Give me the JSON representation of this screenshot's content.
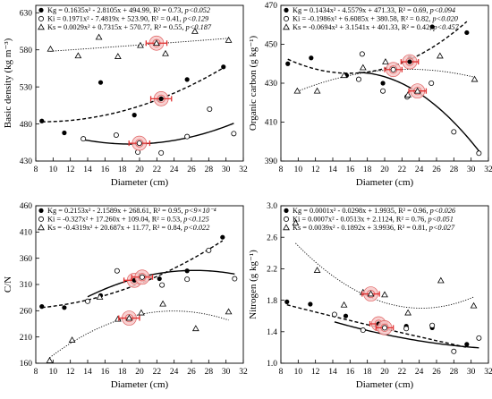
{
  "chart_data": [
    {
      "id": "bd",
      "type": "scatter",
      "ylabel": "Basic density (kg m⁻³)",
      "xlabel": "Diameter (cm)",
      "xlim": [
        8,
        32
      ],
      "ylim": [
        430,
        640
      ],
      "xticks": [
        8,
        10,
        12,
        14,
        16,
        18,
        20,
        22,
        24,
        26,
        28,
        30,
        32
      ],
      "yticks": [
        430,
        480,
        530,
        580,
        630
      ],
      "legend": [
        {
          "symbol": "filled-circle",
          "label": "Kg",
          "equation": " = 0.1635x² - 2.8105x + 494.99, R² = 0.73, ",
          "p": "p<0.052"
        },
        {
          "symbol": "open-circle",
          "label": "Ki",
          "equation": " = 0.1971x² - 7.4819x + 523.90, R² = 0.41, ",
          "p": "p<0.129"
        },
        {
          "symbol": "open-triangle",
          "label": "Ks",
          "equation": " = 0.0029x² + 0.7315x + 570.77, R² = 0.55, ",
          "p": "p<0.187"
        }
      ],
      "series": [
        {
          "name": "Kg",
          "marker": "filled-circle",
          "line": "dashed",
          "coef": [
            0.1635,
            -2.8105,
            494.99
          ],
          "points": [
            [
              8.7,
              484
            ],
            [
              11.3,
              468
            ],
            [
              15.5,
              536
            ],
            [
              19.4,
              492
            ],
            [
              22.3,
              512
            ],
            [
              25.5,
              540
            ],
            [
              29.7,
              557
            ]
          ],
          "opt": [
            22.5,
            514,
            1.2
          ]
        },
        {
          "name": "Ki",
          "marker": "open-circle",
          "line": "solid",
          "coef": [
            0.1971,
            -7.4819,
            523.9
          ],
          "points": [
            [
              13.5,
              460
            ],
            [
              17.3,
              465
            ],
            [
              19.8,
              442
            ],
            [
              22.5,
              441
            ],
            [
              25.5,
              463
            ],
            [
              28.1,
              500
            ],
            [
              30.9,
              467
            ]
          ],
          "opt": [
            19.98,
            454,
            1.2
          ]
        },
        {
          "name": "Ks",
          "marker": "open-triangle",
          "line": "dotted",
          "coef": [
            0.0029,
            0.7315,
            570.77
          ],
          "points": [
            [
              9.7,
              581
            ],
            [
              12.9,
              572
            ],
            [
              15.3,
              597
            ],
            [
              17.5,
              571
            ],
            [
              20.1,
              586
            ],
            [
              23.0,
              575
            ],
            [
              26.4,
              605
            ],
            [
              30.3,
              593
            ]
          ],
          "opt": [
            21.96,
            589,
            1.2
          ]
        }
      ]
    },
    {
      "id": "oc",
      "type": "scatter",
      "ylabel": "Organic carbon (g kg⁻¹)",
      "xlabel": "Diameter (cm)",
      "xlim": [
        8,
        32
      ],
      "ylim": [
        390,
        470
      ],
      "xticks": [
        8,
        10,
        12,
        14,
        16,
        18,
        20,
        22,
        24,
        26,
        28,
        30,
        32
      ],
      "yticks": [
        390,
        410,
        430,
        450,
        470
      ],
      "legend": [
        {
          "symbol": "filled-circle",
          "label": "Kg",
          "equation": " = 0.1434x² - 4.5579x + 471.33, R² = 0.69, ",
          "p": "p<0.094"
        },
        {
          "symbol": "open-circle",
          "label": "Ki",
          "equation": " = -0.1986x² + 6.6085x + 380.58, R² = 0.82, ",
          "p": "p<0.020"
        },
        {
          "symbol": "open-triangle",
          "label": "Ks",
          "equation": " = -0.0694x² + 3.1541x + 401.33, R² = 0.42, ",
          "p": "p<0.457"
        }
      ],
      "series": [
        {
          "name": "Kg",
          "marker": "filled-circle",
          "line": "dashed",
          "coef": [
            0.1434,
            -4.5579,
            471.33
          ],
          "points": [
            [
              8.8,
              440
            ],
            [
              11.5,
              443
            ],
            [
              15.6,
              434
            ],
            [
              19.8,
              430
            ],
            [
              22.9,
              443
            ],
            [
              25.5,
              459
            ],
            [
              29.5,
              456
            ]
          ],
          "opt": [
            22.9,
            441,
            1.0
          ]
        },
        {
          "name": "Ki",
          "marker": "open-circle",
          "line": "solid",
          "coef": [
            -0.1986,
            6.6085,
            380.58
          ],
          "points": [
            [
              17.0,
              432
            ],
            [
              17.4,
              445
            ],
            [
              19.8,
              426
            ],
            [
              22.6,
              423
            ],
            [
              25.4,
              430
            ],
            [
              28.0,
              405
            ],
            [
              30.9,
              394
            ]
          ],
          "opt": [
            21.0,
            437,
            1.0
          ]
        },
        {
          "name": "Ks",
          "marker": "open-triangle",
          "line": "dotted",
          "coef": [
            -0.0694,
            3.1541,
            401.33
          ],
          "points": [
            [
              9.9,
              426
            ],
            [
              12.2,
              426
            ],
            [
              15.3,
              434
            ],
            [
              17.5,
              438
            ],
            [
              20.1,
              441
            ],
            [
              22.7,
              424
            ],
            [
              26.4,
              444
            ],
            [
              30.4,
              432
            ]
          ],
          "opt": [
            23.8,
            426,
            1.0
          ]
        }
      ]
    },
    {
      "id": "cn",
      "type": "scatter",
      "ylabel": "C/N",
      "xlabel": "Diameter (cm)",
      "xlim": [
        8,
        32
      ],
      "ylim": [
        160,
        460
      ],
      "xticks": [
        8,
        10,
        12,
        14,
        16,
        18,
        20,
        22,
        24,
        26,
        28,
        30,
        32
      ],
      "yticks": [
        160,
        210,
        260,
        310,
        360,
        410,
        460
      ],
      "legend": [
        {
          "symbol": "filled-circle",
          "label": "Kg",
          "equation": " = 0.2153x² - 2.1589x + 268.61, R² = 0.95, ",
          "p": "p<9×10⁻⁴"
        },
        {
          "symbol": "open-circle",
          "label": "Ki",
          "equation": " = -0.327x² + 17.260x + 109.04, R² = 0.53, ",
          "p": "p<0.125"
        },
        {
          "symbol": "open-triangle",
          "label": "Ks",
          "equation": " = -0.4319x² + 20.687x + 11.77, R² = 0.84, ",
          "p": "p<0.022"
        }
      ],
      "series": [
        {
          "name": "Kg",
          "marker": "filled-circle",
          "line": "dashed",
          "coef": [
            0.2153,
            -2.1589,
            268.61
          ],
          "points": [
            [
              8.7,
              268
            ],
            [
              11.3,
              266
            ],
            [
              15.5,
              289
            ],
            [
              19.7,
              320
            ],
            [
              22.3,
              321
            ],
            [
              25.5,
              336
            ],
            [
              29.6,
              400
            ]
          ],
          "opt": [
            19.4,
            318,
            1.2
          ]
        },
        {
          "name": "Ki",
          "marker": "open-circle",
          "line": "solid",
          "coef": [
            -0.327,
            17.26,
            109.04
          ],
          "points": [
            [
              14.0,
              278
            ],
            [
              17.4,
              336
            ],
            [
              19.8,
              328
            ],
            [
              22.6,
              309
            ],
            [
              25.5,
              320
            ],
            [
              28.0,
              375
            ],
            [
              31.0,
              321
            ]
          ],
          "opt": [
            20.3,
            324,
            1.2
          ]
        },
        {
          "name": "Ks",
          "marker": "open-triangle",
          "line": "dotted",
          "coef": [
            -0.4319,
            20.687,
            11.77
          ],
          "points": [
            [
              9.6,
              165
            ],
            [
              12.2,
              204
            ],
            [
              15.4,
              286
            ],
            [
              17.5,
              244
            ],
            [
              20.2,
              256
            ],
            [
              22.7,
              273
            ],
            [
              26.5,
              226
            ],
            [
              30.3,
              258
            ]
          ],
          "opt": [
            18.8,
            246,
            1.2
          ]
        }
      ]
    },
    {
      "id": "n",
      "type": "scatter",
      "ylabel": "Nitrogen (g kg⁻¹)",
      "xlabel": "Diameter (cm)",
      "xlim": [
        8,
        32
      ],
      "ylim": [
        1.0,
        3.0
      ],
      "xticks": [
        8,
        10,
        12,
        14,
        16,
        18,
        20,
        22,
        24,
        26,
        28,
        30,
        32
      ],
      "yticks": [
        1.0,
        1.4,
        1.8,
        2.2,
        2.6,
        3.0
      ],
      "legend": [
        {
          "symbol": "filled-circle",
          "label": "Kg",
          "equation": " = 0.0001x² - 0.0298x + 1.9935, R² = 0.96, ",
          "p": "p<0.026"
        },
        {
          "symbol": "open-circle",
          "label": "Ki",
          "equation": " = 0.0007x² - 0.0513x + 2.1124, R² = 0.76, ",
          "p": "p<0.051"
        },
        {
          "symbol": "open-triangle",
          "label": "Ks",
          "equation": " = 0.0039x² - 0.1892x + 3.9936, R² = 0.81, ",
          "p": "p<0.027"
        }
      ],
      "series": [
        {
          "name": "Kg",
          "marker": "filled-circle",
          "line": "dashed",
          "coef": [
            0.0001,
            -0.0298,
            1.9935
          ],
          "points": [
            [
              8.7,
              1.78
            ],
            [
              11.4,
              1.75
            ],
            [
              15.5,
              1.6
            ],
            [
              19.9,
              1.52
            ],
            [
              22.5,
              1.47
            ],
            [
              25.5,
              1.45
            ],
            [
              29.5,
              1.24
            ]
          ],
          "opt": [
            19.3,
            1.5,
            1.0
          ]
        },
        {
          "name": "Ki",
          "marker": "open-circle",
          "line": "solid",
          "coef": [
            0.0007,
            -0.0513,
            2.1124
          ],
          "points": [
            [
              14.2,
              1.62
            ],
            [
              17.5,
              1.42
            ],
            [
              19.9,
              1.45
            ],
            [
              22.5,
              1.44
            ],
            [
              25.5,
              1.48
            ],
            [
              28.0,
              1.15
            ],
            [
              30.9,
              1.32
            ]
          ],
          "opt": [
            20.0,
            1.45,
            1.0
          ]
        },
        {
          "name": "Ks",
          "marker": "open-triangle",
          "line": "dotted",
          "coef": [
            0.0039,
            -0.1892,
            3.9936
          ],
          "points": [
            [
              9.7,
              2.78
            ],
            [
              12.2,
              2.18
            ],
            [
              15.3,
              1.74
            ],
            [
              17.5,
              1.9
            ],
            [
              20.0,
              1.87
            ],
            [
              22.7,
              1.64
            ],
            [
              26.5,
              2.05
            ],
            [
              30.3,
              1.73
            ]
          ],
          "opt": [
            18.4,
            1.88,
            1.0
          ]
        }
      ]
    }
  ]
}
